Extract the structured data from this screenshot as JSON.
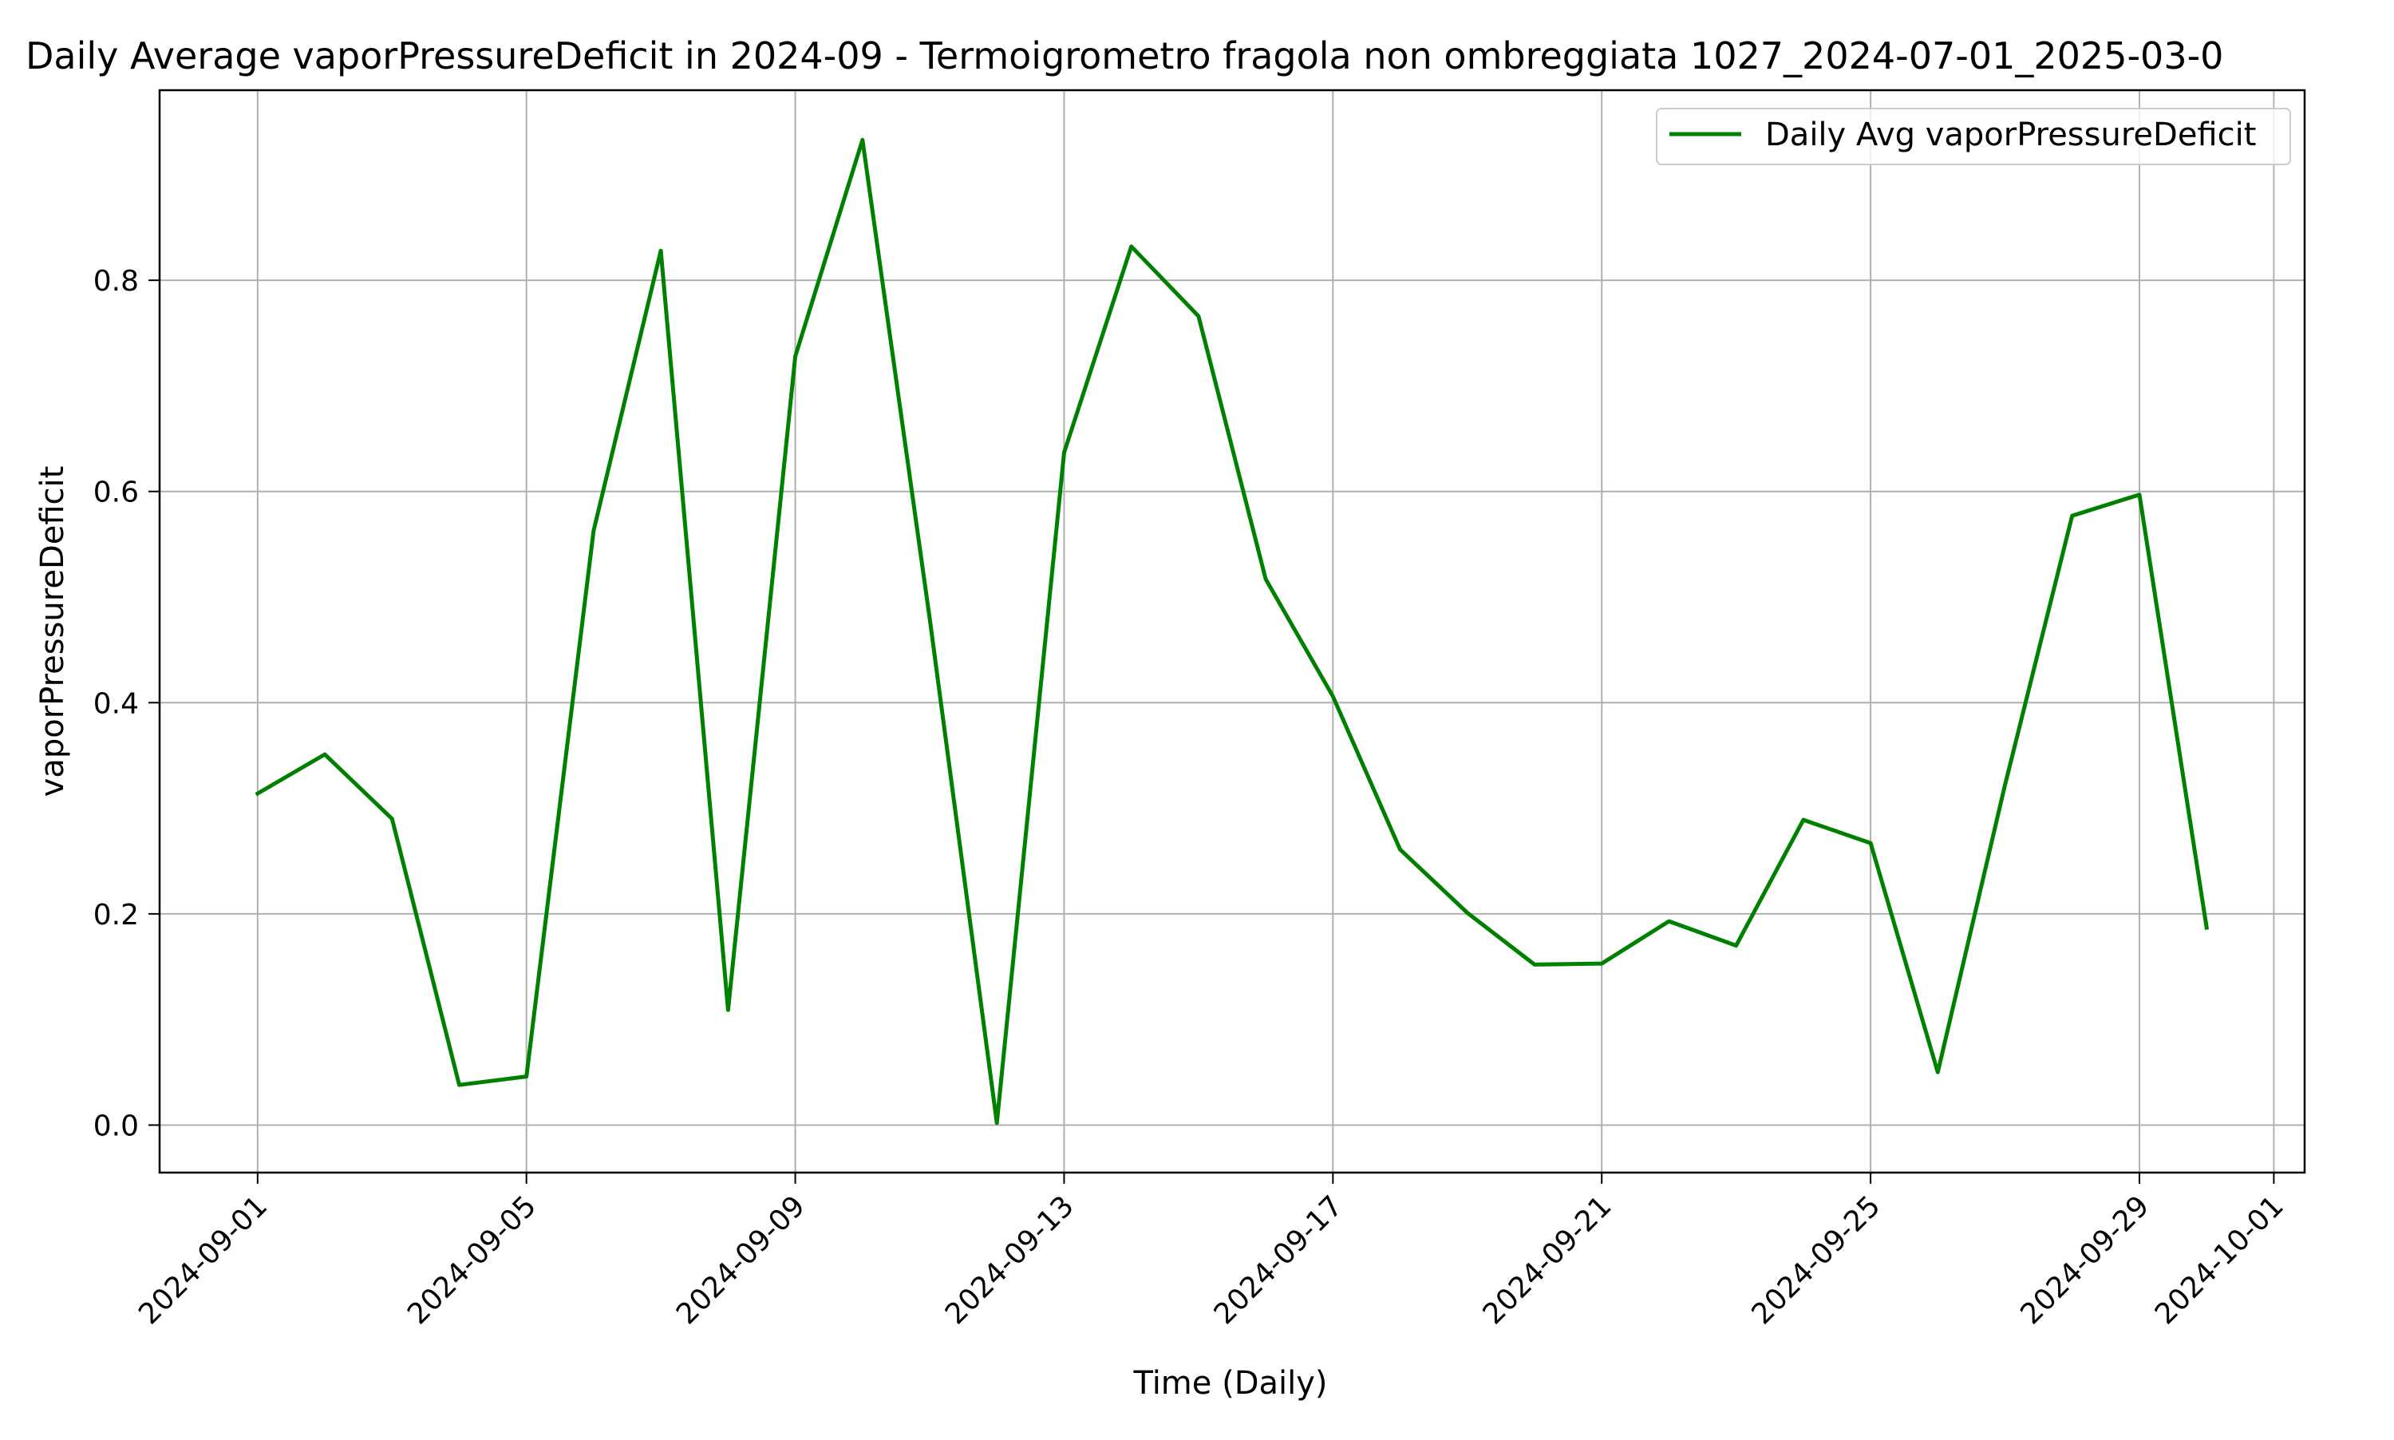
{
  "chart_data": {
    "type": "line",
    "title": "Daily Average vaporPressureDeficit in 2024-09 - Termoigrometro fragola non ombreggiata 1027_2024-07-01_2025-03-0",
    "xlabel": "Time (Daily)",
    "ylabel": "vaporPressureDeficit",
    "xlim": [
      "2024-08-30T13:00",
      "2024-10-01T11:00"
    ],
    "ylim": [
      -0.045,
      0.98
    ],
    "x_ticks": [
      "2024-09-01",
      "2024-09-05",
      "2024-09-09",
      "2024-09-13",
      "2024-09-17",
      "2024-09-21",
      "2024-09-25",
      "2024-09-29",
      "2024-10-01"
    ],
    "y_ticks": [
      0.0,
      0.2,
      0.4,
      0.6,
      0.8
    ],
    "y_tick_labels": [
      "0.0",
      "0.2",
      "0.4",
      "0.6",
      "0.8"
    ],
    "grid": true,
    "legend": {
      "position": "top-right"
    },
    "series": [
      {
        "name": "Daily Avg vaporPressureDeficit",
        "color": "#008000",
        "x": [
          "2024-09-01",
          "2024-09-02",
          "2024-09-03",
          "2024-09-04",
          "2024-09-05",
          "2024-09-06",
          "2024-09-07",
          "2024-09-08",
          "2024-09-09",
          "2024-09-10",
          "2024-09-11",
          "2024-09-12",
          "2024-09-13",
          "2024-09-14",
          "2024-09-15",
          "2024-09-16",
          "2024-09-17",
          "2024-09-18",
          "2024-09-19",
          "2024-09-20",
          "2024-09-21",
          "2024-09-22",
          "2024-09-23",
          "2024-09-24",
          "2024-09-25",
          "2024-09-26",
          "2024-09-27",
          "2024-09-28",
          "2024-09-29",
          "2024-09-30"
        ],
        "values": [
          0.314,
          0.351,
          0.29,
          0.038,
          0.046,
          0.563,
          0.828,
          0.109,
          0.728,
          0.933,
          0.48,
          0.002,
          0.637,
          0.832,
          0.766,
          0.517,
          0.406,
          0.261,
          0.201,
          0.152,
          0.153,
          0.193,
          0.17,
          0.289,
          0.267,
          0.05,
          0.322,
          0.577,
          0.597,
          0.187
        ]
      }
    ]
  }
}
